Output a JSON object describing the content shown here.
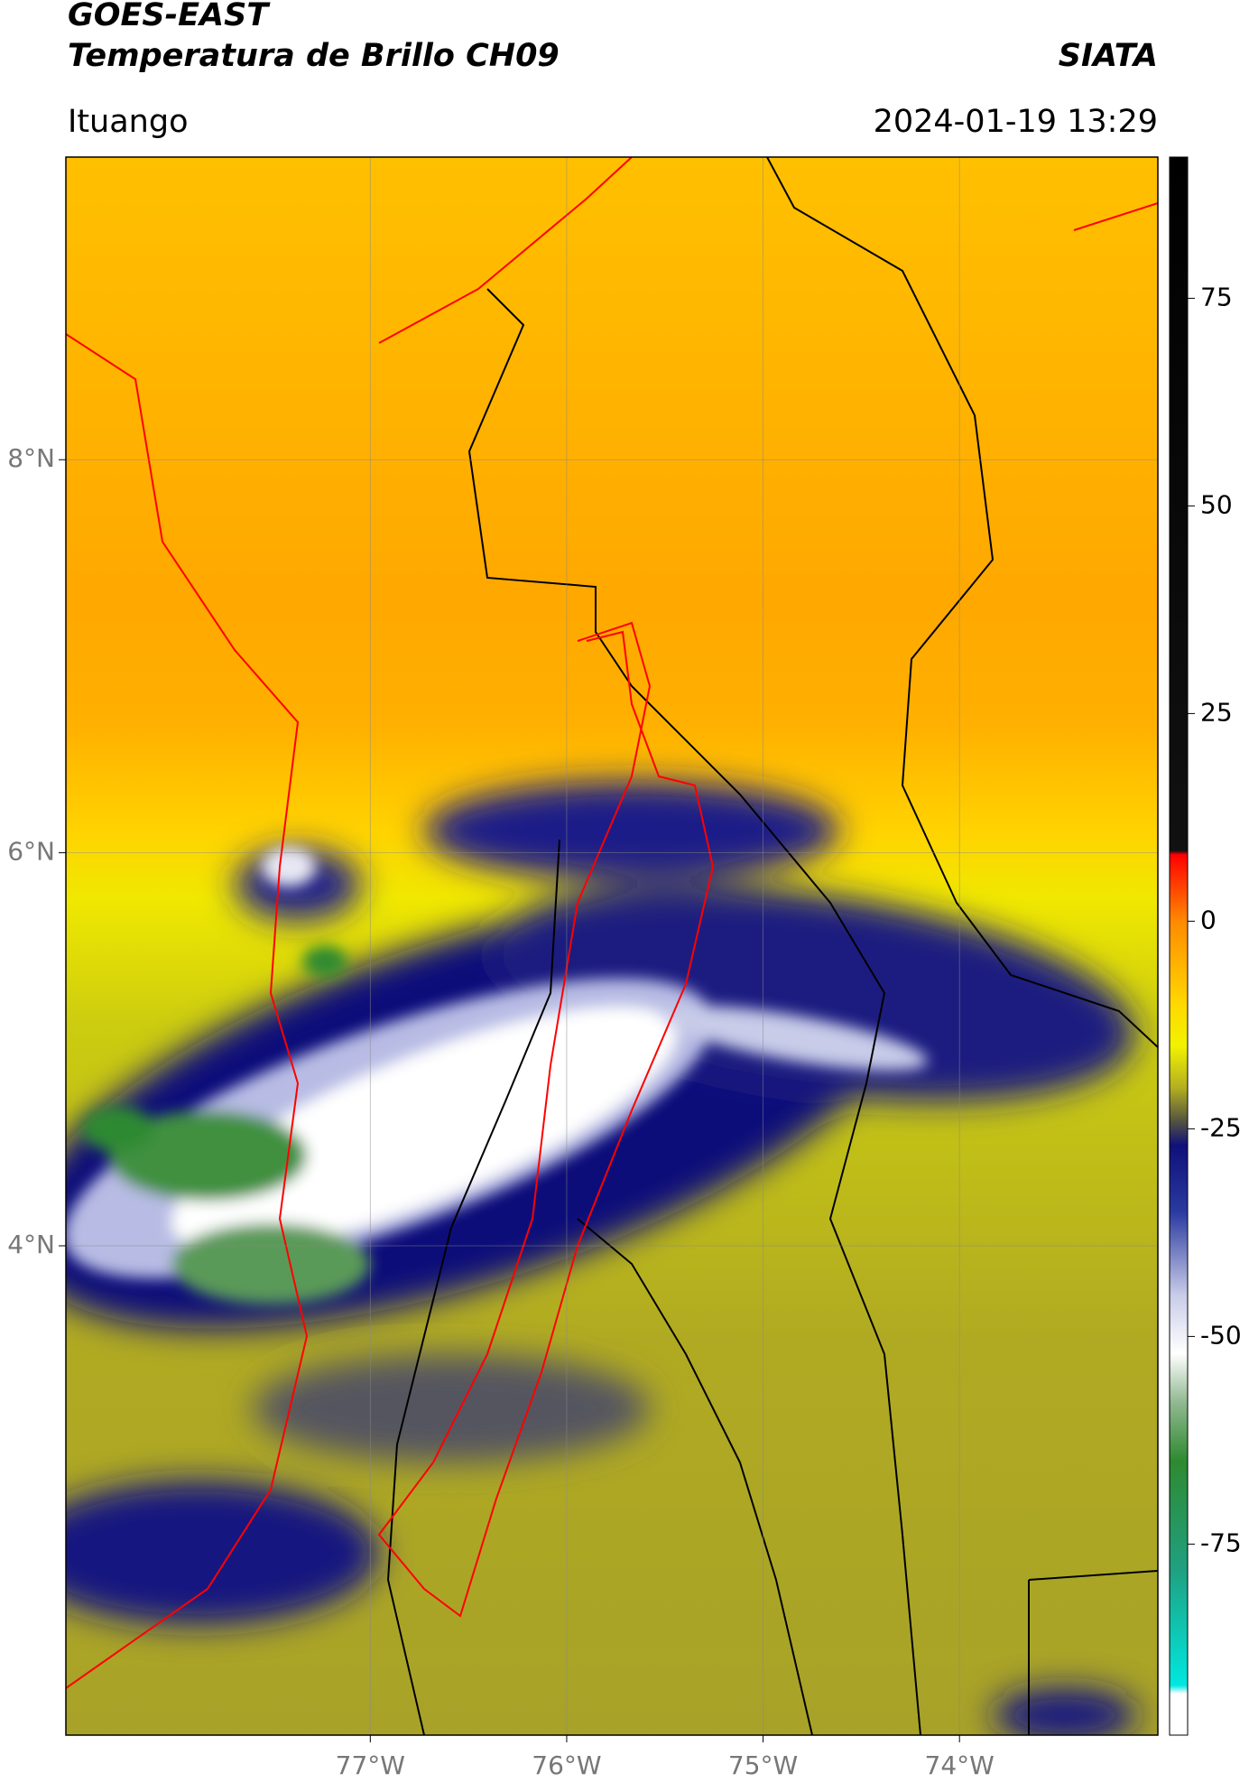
{
  "chart_data": {
    "type": "map",
    "title": "GOES-EAST",
    "subtitle": "Temperatura de Brillo CH09",
    "brand": "SIATA",
    "location": "Ituango",
    "timestamp": "2024-01-19 13:29",
    "xlim": [
      -78.55,
      -72.99
    ],
    "ylim": [
      1.51,
      9.54
    ],
    "xticks": [
      {
        "value": -77,
        "label": "77°W"
      },
      {
        "value": -76,
        "label": "76°W"
      },
      {
        "value": -75,
        "label": "75°W"
      },
      {
        "value": -74,
        "label": "74°W"
      }
    ],
    "yticks": [
      {
        "value": 8,
        "label": "8°N"
      },
      {
        "value": 6,
        "label": "6°N"
      },
      {
        "value": 4,
        "label": "4°N"
      }
    ],
    "grid": true,
    "colorbar": {
      "lim": [
        -98,
        92
      ],
      "ticks": [
        75,
        50,
        25,
        0,
        -25,
        -50,
        -75
      ],
      "stops": [
        {
          "value": 92,
          "color": "#000000"
        },
        {
          "value": 8.5,
          "color": "#111111"
        },
        {
          "value": 8,
          "color": "#ff0000"
        },
        {
          "value": 0,
          "color": "#ff8a00"
        },
        {
          "value": -10,
          "color": "#ffd800"
        },
        {
          "value": -15,
          "color": "#f2f200"
        },
        {
          "value": -20,
          "color": "#b4b020"
        },
        {
          "value": -24,
          "color": "#555540"
        },
        {
          "value": -27,
          "color": "#10107a"
        },
        {
          "value": -35,
          "color": "#2a3aa0"
        },
        {
          "value": -45,
          "color": "#c8cce8"
        },
        {
          "value": -52,
          "color": "#ffffff"
        },
        {
          "value": -58,
          "color": "#90b890"
        },
        {
          "value": -65,
          "color": "#2e8a30"
        },
        {
          "value": -78,
          "color": "#20a080"
        },
        {
          "value": -92,
          "color": "#00e8e0"
        },
        {
          "value": -93,
          "color": "#ffffff"
        },
        {
          "value": -98,
          "color": "#ffffff"
        }
      ]
    }
  }
}
